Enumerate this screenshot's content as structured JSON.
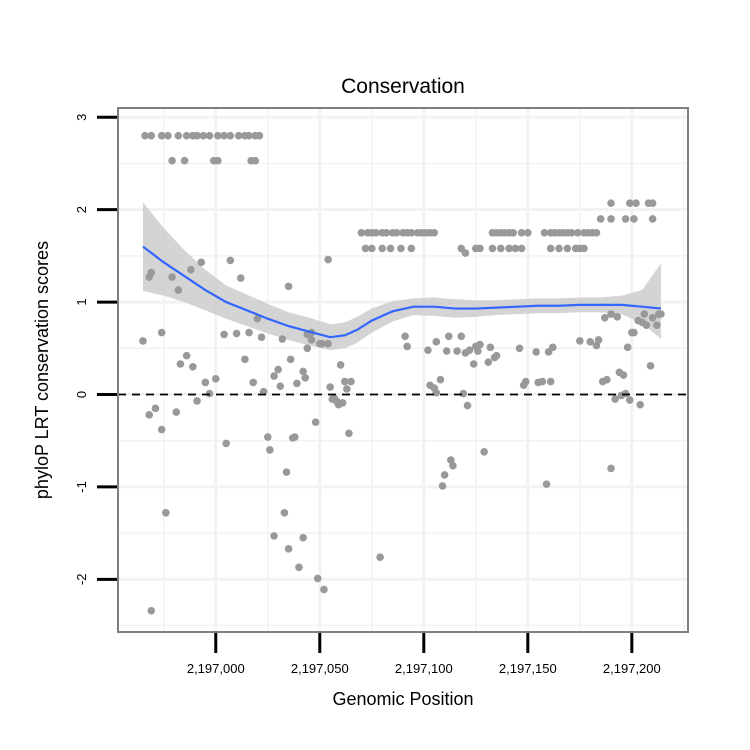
{
  "chart_data": {
    "type": "scatter",
    "title": "Conservation",
    "xlabel": "Genomic Position",
    "ylabel": "phyloP LRT conservation scores",
    "xlim": [
      2196953,
      2197227
    ],
    "ylim": [
      -2.57,
      3.1
    ],
    "x_ticks": [
      2197000,
      2197050,
      2197100,
      2197150,
      2197200
    ],
    "x_tick_labels": [
      "2,197,000",
      "2,197,050",
      "2,197,100",
      "2,197,150",
      "2,197,200"
    ],
    "y_ticks": [
      -2,
      -1,
      0,
      1,
      2,
      3
    ],
    "y_tick_labels": [
      "-2",
      "-1",
      "0",
      "1",
      "2",
      "3"
    ],
    "reference_line": {
      "y": 0,
      "style": "dashed"
    },
    "colors": {
      "points": "#999999",
      "smooth": "#3366ff",
      "band": "#cccccc",
      "grid": "#f2f2f2",
      "frame": "#7f7f7f"
    },
    "points": [
      [
        2196966,
        2.8
      ],
      [
        2196969,
        2.8
      ],
      [
        2196974,
        2.8
      ],
      [
        2196977,
        2.8
      ],
      [
        2196982,
        2.8
      ],
      [
        2196986,
        2.8
      ],
      [
        2196989,
        2.8
      ],
      [
        2196991,
        2.8
      ],
      [
        2196994,
        2.8
      ],
      [
        2196997,
        2.8
      ],
      [
        2197001,
        2.8
      ],
      [
        2197004,
        2.8
      ],
      [
        2197007,
        2.8
      ],
      [
        2197011,
        2.8
      ],
      [
        2197014,
        2.8
      ],
      [
        2197016,
        2.8
      ],
      [
        2197019,
        2.8
      ],
      [
        2197021,
        2.8
      ],
      [
        2196979,
        2.53
      ],
      [
        2196985,
        2.53
      ],
      [
        2196999,
        2.53
      ],
      [
        2197001,
        2.53
      ],
      [
        2197017,
        2.53
      ],
      [
        2197019,
        2.53
      ],
      [
        2197070,
        1.75
      ],
      [
        2197073,
        1.75
      ],
      [
        2197075,
        1.75
      ],
      [
        2197077,
        1.75
      ],
      [
        2197080,
        1.75
      ],
      [
        2197082,
        1.75
      ],
      [
        2197085,
        1.75
      ],
      [
        2197087,
        1.75
      ],
      [
        2197090,
        1.75
      ],
      [
        2197092,
        1.75
      ],
      [
        2197094,
        1.75
      ],
      [
        2197097,
        1.75
      ],
      [
        2197099,
        1.75
      ],
      [
        2197101,
        1.75
      ],
      [
        2197103,
        1.75
      ],
      [
        2197105,
        1.75
      ],
      [
        2197072,
        1.58
      ],
      [
        2197075,
        1.58
      ],
      [
        2197080,
        1.58
      ],
      [
        2197084,
        1.58
      ],
      [
        2197089,
        1.58
      ],
      [
        2197094,
        1.58
      ],
      [
        2197118,
        1.58
      ],
      [
        2197125,
        1.58
      ],
      [
        2197133,
        1.75
      ],
      [
        2197135,
        1.75
      ],
      [
        2197137,
        1.75
      ],
      [
        2197139,
        1.75
      ],
      [
        2197141,
        1.75
      ],
      [
        2197143,
        1.75
      ],
      [
        2197147,
        1.75
      ],
      [
        2197150,
        1.75
      ],
      [
        2197158,
        1.75
      ],
      [
        2197161,
        1.75
      ],
      [
        2197163,
        1.75
      ],
      [
        2197165,
        1.75
      ],
      [
        2197167,
        1.75
      ],
      [
        2197169,
        1.75
      ],
      [
        2197171,
        1.75
      ],
      [
        2197174,
        1.75
      ],
      [
        2197177,
        1.75
      ],
      [
        2197179,
        1.75
      ],
      [
        2197181,
        1.75
      ],
      [
        2197183,
        1.75
      ],
      [
        2197127,
        1.58
      ],
      [
        2197133,
        1.58
      ],
      [
        2197137,
        1.58
      ],
      [
        2197141,
        1.58
      ],
      [
        2197144,
        1.58
      ],
      [
        2197147,
        1.58
      ],
      [
        2197161,
        1.58
      ],
      [
        2197165,
        1.58
      ],
      [
        2197169,
        1.58
      ],
      [
        2197173,
        1.58
      ],
      [
        2197175,
        1.58
      ],
      [
        2197177,
        1.58
      ],
      [
        2197190,
        2.07
      ],
      [
        2197199,
        2.07
      ],
      [
        2197202,
        2.07
      ],
      [
        2197208,
        2.07
      ],
      [
        2197210,
        2.07
      ],
      [
        2197185,
        1.9
      ],
      [
        2197190,
        1.9
      ],
      [
        2197197,
        1.9
      ],
      [
        2197201,
        1.9
      ],
      [
        2197210,
        1.9
      ],
      [
        2197120,
        1.53
      ],
      [
        2196965,
        0.58
      ],
      [
        2196968,
        1.27
      ],
      [
        2196969,
        1.32
      ],
      [
        2196968,
        -0.22
      ],
      [
        2196971,
        -0.15
      ],
      [
        2196969,
        -2.34
      ],
      [
        2196974,
        -0.38
      ],
      [
        2196974,
        0.67
      ],
      [
        2196976,
        -1.28
      ],
      [
        2196979,
        1.27
      ],
      [
        2196982,
        1.13
      ],
      [
        2196981,
        -0.19
      ],
      [
        2196983,
        0.33
      ],
      [
        2196986,
        0.42
      ],
      [
        2196988,
        1.35
      ],
      [
        2196989,
        0.3
      ],
      [
        2196991,
        -0.07
      ],
      [
        2196993,
        1.43
      ],
      [
        2196995,
        0.13
      ],
      [
        2196997,
        0.01
      ],
      [
        2197000,
        0.17
      ],
      [
        2197004,
        0.65
      ],
      [
        2197005,
        -0.53
      ],
      [
        2197007,
        1.45
      ],
      [
        2197010,
        0.66
      ],
      [
        2197012,
        1.26
      ],
      [
        2197014,
        0.38
      ],
      [
        2197016,
        0.67
      ],
      [
        2197018,
        0.13
      ],
      [
        2197020,
        0.82
      ],
      [
        2197022,
        0.62
      ],
      [
        2197023,
        0.03
      ],
      [
        2197025,
        -0.46
      ],
      [
        2197026,
        -0.6
      ],
      [
        2197028,
        -1.53
      ],
      [
        2197028,
        0.2
      ],
      [
        2197030,
        0.27
      ],
      [
        2197031,
        0.09
      ],
      [
        2197032,
        0.6
      ],
      [
        2197034,
        -0.84
      ],
      [
        2197033,
        -1.28
      ],
      [
        2197035,
        -1.67
      ],
      [
        2197035,
        1.17
      ],
      [
        2197036,
        0.38
      ],
      [
        2197037,
        -0.47
      ],
      [
        2197038,
        -0.46
      ],
      [
        2197039,
        0.12
      ],
      [
        2197040,
        -1.87
      ],
      [
        2197042,
        -1.55
      ],
      [
        2197042,
        0.25
      ],
      [
        2197043,
        0.18
      ],
      [
        2197044,
        0.5
      ],
      [
        2197044,
        0.65
      ],
      [
        2197046,
        0.59
      ],
      [
        2197046,
        0.67
      ],
      [
        2197048,
        -0.3
      ],
      [
        2197049,
        -1.99
      ],
      [
        2197050,
        0.55
      ],
      [
        2197051,
        0.55
      ],
      [
        2197052,
        -2.11
      ],
      [
        2197054,
        1.46
      ],
      [
        2197054,
        0.55
      ],
      [
        2197055,
        0.08
      ],
      [
        2197056,
        -0.05
      ],
      [
        2197057,
        -0.04
      ],
      [
        2197058,
        -0.07
      ],
      [
        2197059,
        -0.11
      ],
      [
        2197060,
        0.32
      ],
      [
        2197061,
        -0.09
      ],
      [
        2197062,
        0.14
      ],
      [
        2197063,
        0.06
      ],
      [
        2197064,
        -0.42
      ],
      [
        2197065,
        0.14
      ],
      [
        2197079,
        -1.76
      ],
      [
        2197091,
        0.63
      ],
      [
        2197092,
        0.52
      ],
      [
        2197102,
        0.48
      ],
      [
        2197103,
        0.1
      ],
      [
        2197105,
        0.07
      ],
      [
        2197106,
        0.57
      ],
      [
        2197106,
        0.02
      ],
      [
        2197108,
        0.16
      ],
      [
        2197109,
        -0.99
      ],
      [
        2197110,
        -0.87
      ],
      [
        2197111,
        0.47
      ],
      [
        2197112,
        0.63
      ],
      [
        2197113,
        -0.71
      ],
      [
        2197114,
        -0.77
      ],
      [
        2197116,
        0.47
      ],
      [
        2197118,
        0.63
      ],
      [
        2197119,
        0.01
      ],
      [
        2197120,
        0.45
      ],
      [
        2197121,
        -0.12
      ],
      [
        2197122,
        0.48
      ],
      [
        2197124,
        0.33
      ],
      [
        2197125,
        0.52
      ],
      [
        2197126,
        0.47
      ],
      [
        2197127,
        0.54
      ],
      [
        2197129,
        -0.62
      ],
      [
        2197131,
        0.35
      ],
      [
        2197132,
        0.51
      ],
      [
        2197134,
        0.4
      ],
      [
        2197135,
        0.42
      ],
      [
        2197146,
        0.5
      ],
      [
        2197148,
        0.1
      ],
      [
        2197149,
        0.14
      ],
      [
        2197154,
        0.46
      ],
      [
        2197155,
        0.13
      ],
      [
        2197157,
        0.14
      ],
      [
        2197159,
        -0.97
      ],
      [
        2197160,
        0.46
      ],
      [
        2197161,
        0.14
      ],
      [
        2197162,
        0.51
      ],
      [
        2197175,
        0.58
      ],
      [
        2197180,
        0.57
      ],
      [
        2197183,
        0.53
      ],
      [
        2197184,
        0.59
      ],
      [
        2197186,
        0.14
      ],
      [
        2197187,
        0.83
      ],
      [
        2197188,
        0.16
      ],
      [
        2197190,
        -0.8
      ],
      [
        2197190,
        0.87
      ],
      [
        2197192,
        -0.05
      ],
      [
        2197193,
        0.84
      ],
      [
        2197194,
        0.24
      ],
      [
        2197195,
        -0.01
      ],
      [
        2197196,
        0.21
      ],
      [
        2197197,
        0.01
      ],
      [
        2197198,
        0.51
      ],
      [
        2197199,
        -0.06
      ],
      [
        2197200,
        0.67
      ],
      [
        2197201,
        0.67
      ],
      [
        2197203,
        0.8
      ],
      [
        2197204,
        -0.11
      ],
      [
        2197205,
        0.78
      ],
      [
        2197206,
        0.87
      ],
      [
        2197207,
        0.75
      ],
      [
        2197209,
        0.31
      ],
      [
        2197210,
        0.83
      ],
      [
        2197212,
        0.75
      ],
      [
        2197213,
        0.87
      ],
      [
        2197214,
        0.87
      ]
    ],
    "smooth": {
      "x": [
        2196965,
        2196975,
        2196985,
        2196995,
        2197005,
        2197015,
        2197025,
        2197035,
        2197045,
        2197055,
        2197062,
        2197068,
        2197075,
        2197085,
        2197095,
        2197105,
        2197115,
        2197125,
        2197135,
        2197145,
        2197155,
        2197165,
        2197175,
        2197185,
        2197195,
        2197205,
        2197214
      ],
      "y": [
        1.6,
        1.43,
        1.28,
        1.13,
        1.0,
        0.91,
        0.82,
        0.74,
        0.68,
        0.62,
        0.64,
        0.7,
        0.8,
        0.9,
        0.95,
        0.95,
        0.93,
        0.93,
        0.94,
        0.95,
        0.96,
        0.96,
        0.97,
        0.97,
        0.97,
        0.95,
        0.93
      ],
      "lower": [
        1.12,
        1.07,
        1.0,
        0.91,
        0.82,
        0.74,
        0.66,
        0.59,
        0.53,
        0.48,
        0.5,
        0.56,
        0.67,
        0.79,
        0.86,
        0.85,
        0.83,
        0.84,
        0.86,
        0.87,
        0.88,
        0.88,
        0.89,
        0.89,
        0.87,
        0.77,
        0.6
      ],
      "upper": [
        2.08,
        1.8,
        1.56,
        1.35,
        1.18,
        1.08,
        0.98,
        0.89,
        0.83,
        0.76,
        0.78,
        0.84,
        0.93,
        1.01,
        1.04,
        1.05,
        1.03,
        1.02,
        1.02,
        1.03,
        1.04,
        1.04,
        1.05,
        1.05,
        1.07,
        1.13,
        1.42
      ]
    }
  }
}
